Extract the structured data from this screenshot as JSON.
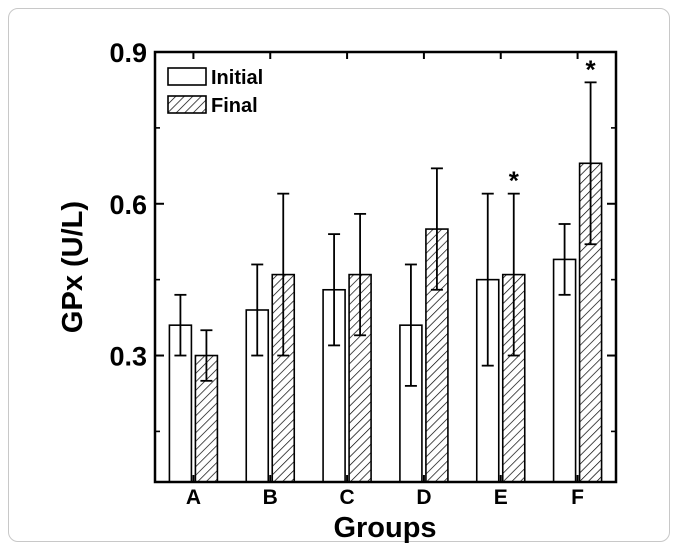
{
  "chart_data": {
    "type": "bar",
    "categories": [
      "A",
      "B",
      "C",
      "D",
      "E",
      "F"
    ],
    "series": [
      {
        "name": "Initial",
        "values": [
          0.36,
          0.39,
          0.43,
          0.36,
          0.45,
          0.49
        ],
        "err_high": [
          0.42,
          0.48,
          0.54,
          0.48,
          0.62,
          0.56
        ],
        "err_low": [
          0.3,
          0.3,
          0.32,
          0.24,
          0.28,
          0.42
        ]
      },
      {
        "name": "Final",
        "values": [
          0.3,
          0.46,
          0.46,
          0.55,
          0.46,
          0.68
        ],
        "err_high": [
          0.35,
          0.62,
          0.58,
          0.67,
          0.62,
          0.84
        ],
        "err_low": [
          0.25,
          0.3,
          0.34,
          0.43,
          0.3,
          0.52
        ]
      }
    ],
    "xlabel": "Groups",
    "ylabel": "GPx (U/L)",
    "ylim": [
      0.05,
      0.9
    ],
    "yticks": [
      0.3,
      0.6,
      0.9
    ],
    "ytick_labels": [
      "0.3",
      "0.6",
      "0.9"
    ],
    "annotations": [
      {
        "category": "E",
        "series": "Final",
        "text": "*"
      },
      {
        "category": "F",
        "series": "Final",
        "text": "*"
      }
    ],
    "legend": "top-left",
    "grid": false
  }
}
